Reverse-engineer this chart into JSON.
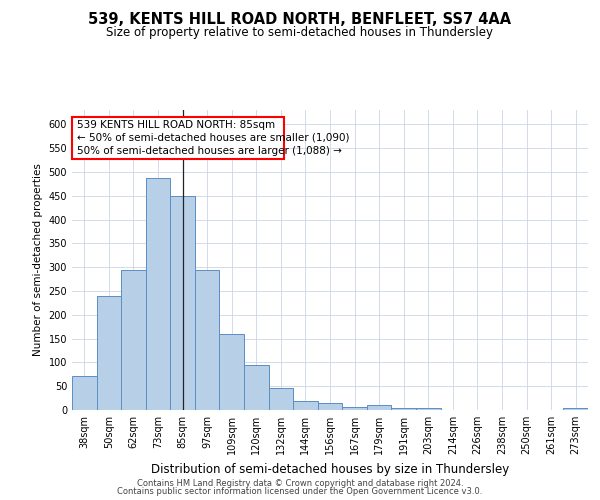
{
  "title": "539, KENTS HILL ROAD NORTH, BENFLEET, SS7 4AA",
  "subtitle": "Size of property relative to semi-detached houses in Thundersley",
  "xlabel": "Distribution of semi-detached houses by size in Thundersley",
  "ylabel": "Number of semi-detached properties",
  "footer1": "Contains HM Land Registry data © Crown copyright and database right 2024.",
  "footer2": "Contains public sector information licensed under the Open Government Licence v3.0.",
  "categories": [
    "38sqm",
    "50sqm",
    "62sqm",
    "73sqm",
    "85sqm",
    "97sqm",
    "109sqm",
    "120sqm",
    "132sqm",
    "144sqm",
    "156sqm",
    "167sqm",
    "179sqm",
    "191sqm",
    "203sqm",
    "214sqm",
    "226sqm",
    "238sqm",
    "250sqm",
    "261sqm",
    "273sqm"
  ],
  "values": [
    72,
    240,
    295,
    487,
    450,
    295,
    160,
    95,
    47,
    18,
    14,
    7,
    10,
    4,
    4,
    1,
    1,
    1,
    0,
    0,
    5
  ],
  "bar_color": "#b8cfe8",
  "bar_edge_color": "#5b8ec4",
  "vline_x": 4,
  "annotation_text1": "539 KENTS HILL ROAD NORTH: 85sqm",
  "annotation_text2": "← 50% of semi-detached houses are smaller (1,090)",
  "annotation_text3": "50% of semi-detached houses are larger (1,088) →",
  "annotation_edge_color": "red",
  "ylim": [
    0,
    630
  ],
  "yticks": [
    0,
    50,
    100,
    150,
    200,
    250,
    300,
    350,
    400,
    450,
    500,
    550,
    600
  ],
  "background_color": "#ffffff",
  "grid_color": "#ccd6e8",
  "title_fontsize": 10.5,
  "subtitle_fontsize": 8.5,
  "xlabel_fontsize": 8.5,
  "ylabel_fontsize": 7.5,
  "tick_fontsize": 7,
  "footer_fontsize": 6,
  "ann_fontsize": 7.5
}
